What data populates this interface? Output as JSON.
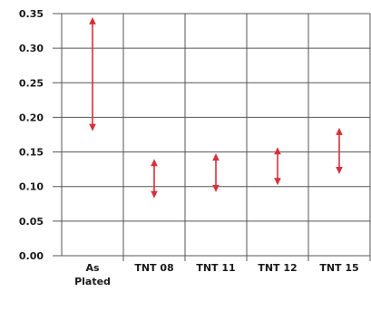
{
  "chart_data": {
    "type": "range",
    "title": "",
    "xlabel": "",
    "ylabel": "",
    "ylim": [
      0,
      0.35
    ],
    "y_ticks": [
      "0.00",
      "0.05",
      "0.10",
      "0.15",
      "0.20",
      "0.25",
      "0.30",
      "0.35"
    ],
    "categories": [
      [
        "As",
        "Plated"
      ],
      [
        "TNT 08"
      ],
      [
        "TNT 11"
      ],
      [
        "TNT 12"
      ],
      [
        "TNT 15"
      ]
    ],
    "ranges": [
      {
        "min": 0.18,
        "max": 0.345
      },
      {
        "min": 0.083,
        "max": 0.14
      },
      {
        "min": 0.092,
        "max": 0.148
      },
      {
        "min": 0.102,
        "max": 0.157
      },
      {
        "min": 0.118,
        "max": 0.185
      }
    ],
    "grid": true,
    "colors": {
      "arrow": "#d8303b",
      "grid": "#555555",
      "axis": "#555555"
    }
  }
}
